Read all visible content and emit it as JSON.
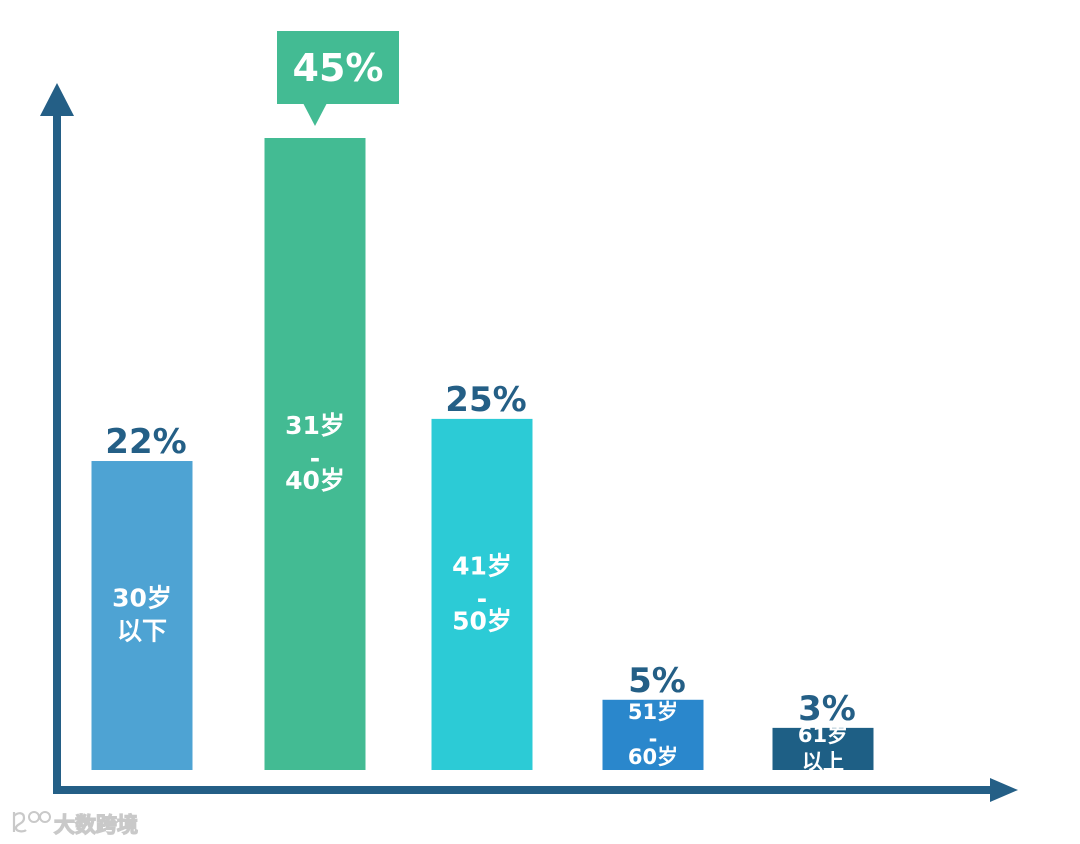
{
  "chart_data": {
    "type": "bar",
    "categories": [
      [
        "30岁",
        "以下"
      ],
      [
        "31岁",
        "-",
        "40岁"
      ],
      [
        "41岁",
        "-",
        "50岁"
      ],
      [
        "51岁",
        "-",
        "60岁"
      ],
      [
        "61岁",
        "以上"
      ]
    ],
    "values": [
      22,
      45,
      25,
      5,
      3
    ],
    "value_labels": [
      "22%",
      "45%",
      "25%",
      "5%",
      "3%"
    ],
    "highlight_index": 1,
    "ylim": [
      0,
      50
    ],
    "grid": false,
    "colors": {
      "bars": [
        "#4ea3d3",
        "#43bb93",
        "#2ccbd6",
        "#2a87cc",
        "#1e5f85"
      ],
      "value_text": "#245f86",
      "callout_bg": "#43bb93",
      "callout_text": "#ffffff",
      "axis": "#245f86"
    }
  },
  "watermark": {
    "text": "大数跨境",
    "icon": "logo-icon"
  }
}
